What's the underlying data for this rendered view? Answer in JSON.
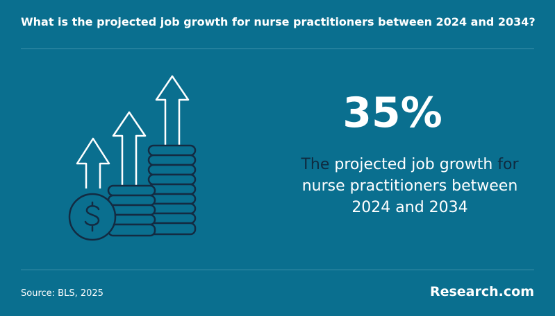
{
  "question": "What is the projected job growth for nurse practitioners between 2024 and 2034?",
  "stat": "35%",
  "description": [
    "The",
    "projected job growth",
    "for",
    "nurse practitioners between",
    "2024 and 2034"
  ],
  "source": "Source: BLS, 2025",
  "brand": "Research.com"
}
